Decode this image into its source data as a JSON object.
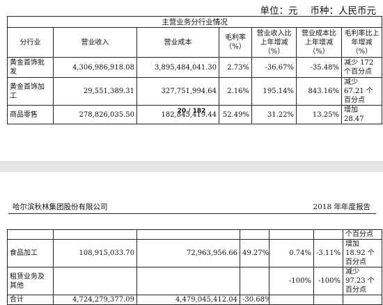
{
  "unit_line": {
    "unit": "单位：元",
    "currency": "币种：人民币元"
  },
  "table1": {
    "caption": "主营业务分行业情况",
    "headers": [
      "分行业",
      "营业收入",
      "营业成本",
      "毛利率（%）",
      "营业收入比上年增减（%）",
      "营业成本比上年增减（%）",
      "毛利率比上年增减（%）"
    ],
    "rows": [
      [
        "黄金首饰批发",
        "4,306,986,918.08",
        "3,895,484,041.30",
        "2.73%",
        "-36.67%",
        "-35.48%",
        "减少 172 个百分点"
      ],
      [
        "黄金首饰加工",
        "29,551,389.31",
        "327,751,994.64",
        "2.16%",
        "195.14%",
        "843.16%",
        "减少 67.21 个百分点"
      ],
      [
        "商品零售",
        "278,826,035.50",
        "182,845,419.44",
        "52.49%",
        "31.22%",
        "13.25%",
        "增加 28.47"
      ]
    ]
  },
  "page_number": "20 / 182",
  "page_header": {
    "company": "哈尔滨秋林集团股份有限公司",
    "year": "2018 年年度报告"
  },
  "table2": {
    "continued": "个百分点",
    "rows": [
      [
        "食品加工",
        "108,915,033.70",
        "72,963,956.66",
        "49.27%",
        "0.74%",
        "-3.11%",
        "增加 18.92 个百分点"
      ],
      [
        "租赁业务及其他",
        "",
        "",
        "",
        "-100%",
        "-100%",
        "减少 97.23 个百分点"
      ],
      [
        "合计",
        "4,724,279,377.09",
        "4,479,045,412.04",
        "-30.68%",
        "",
        "",
        ""
      ]
    ]
  }
}
